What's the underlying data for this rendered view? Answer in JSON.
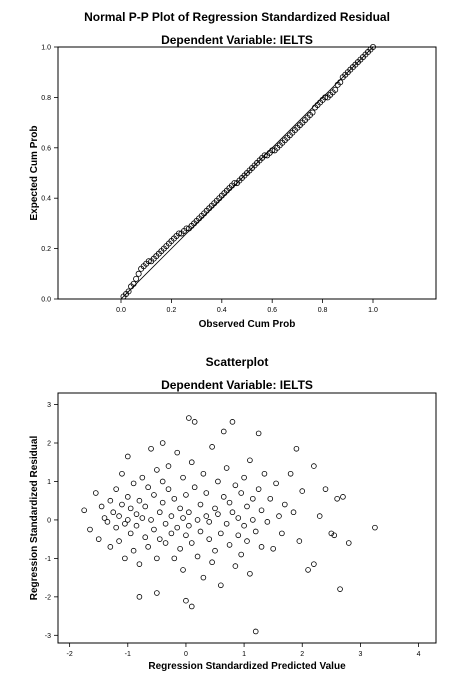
{
  "chart_data": [
    {
      "type": "scatter",
      "title": "Normal P-P Plot of Regression Standardized Residual",
      "subtitle": "Dependent Variable: IELTS",
      "xlabel": "Observed Cum Prob",
      "ylabel": "Expected Cum Prob",
      "xlim": [
        -0.25,
        1.25
      ],
      "ylim": [
        0.0,
        1.0
      ],
      "x_ticks": [
        "0.0",
        "0.2",
        "0.4",
        "0.6",
        "0.8",
        "1.0"
      ],
      "y_ticks": [
        "0.0",
        "0.2",
        "0.4",
        "0.6",
        "0.8",
        "1.0"
      ],
      "grid": false,
      "reference_line": [
        [
          0.0,
          0.0
        ],
        [
          1.0,
          1.0
        ]
      ],
      "points": [
        [
          0.01,
          0.01
        ],
        [
          0.02,
          0.02
        ],
        [
          0.03,
          0.03
        ],
        [
          0.04,
          0.05
        ],
        [
          0.05,
          0.06
        ],
        [
          0.06,
          0.08
        ],
        [
          0.07,
          0.1
        ],
        [
          0.08,
          0.12
        ],
        [
          0.09,
          0.13
        ],
        [
          0.1,
          0.14
        ],
        [
          0.11,
          0.15
        ],
        [
          0.12,
          0.15
        ],
        [
          0.13,
          0.16
        ],
        [
          0.14,
          0.17
        ],
        [
          0.15,
          0.18
        ],
        [
          0.16,
          0.19
        ],
        [
          0.17,
          0.2
        ],
        [
          0.18,
          0.21
        ],
        [
          0.19,
          0.22
        ],
        [
          0.2,
          0.23
        ],
        [
          0.21,
          0.24
        ],
        [
          0.22,
          0.25
        ],
        [
          0.23,
          0.26
        ],
        [
          0.24,
          0.26
        ],
        [
          0.25,
          0.27
        ],
        [
          0.26,
          0.28
        ],
        [
          0.27,
          0.28
        ],
        [
          0.28,
          0.29
        ],
        [
          0.29,
          0.3
        ],
        [
          0.3,
          0.31
        ],
        [
          0.31,
          0.32
        ],
        [
          0.32,
          0.33
        ],
        [
          0.33,
          0.34
        ],
        [
          0.34,
          0.35
        ],
        [
          0.35,
          0.36
        ],
        [
          0.36,
          0.37
        ],
        [
          0.37,
          0.38
        ],
        [
          0.38,
          0.39
        ],
        [
          0.39,
          0.4
        ],
        [
          0.4,
          0.41
        ],
        [
          0.41,
          0.42
        ],
        [
          0.42,
          0.43
        ],
        [
          0.43,
          0.44
        ],
        [
          0.44,
          0.45
        ],
        [
          0.45,
          0.46
        ],
        [
          0.46,
          0.46
        ],
        [
          0.47,
          0.47
        ],
        [
          0.48,
          0.48
        ],
        [
          0.49,
          0.49
        ],
        [
          0.5,
          0.5
        ],
        [
          0.51,
          0.51
        ],
        [
          0.52,
          0.52
        ],
        [
          0.53,
          0.53
        ],
        [
          0.54,
          0.54
        ],
        [
          0.55,
          0.55
        ],
        [
          0.56,
          0.56
        ],
        [
          0.57,
          0.57
        ],
        [
          0.58,
          0.57
        ],
        [
          0.59,
          0.58
        ],
        [
          0.6,
          0.59
        ],
        [
          0.61,
          0.59
        ],
        [
          0.62,
          0.6
        ],
        [
          0.63,
          0.61
        ],
        [
          0.64,
          0.62
        ],
        [
          0.65,
          0.63
        ],
        [
          0.66,
          0.64
        ],
        [
          0.67,
          0.65
        ],
        [
          0.68,
          0.66
        ],
        [
          0.69,
          0.67
        ],
        [
          0.7,
          0.68
        ],
        [
          0.71,
          0.69
        ],
        [
          0.72,
          0.7
        ],
        [
          0.73,
          0.71
        ],
        [
          0.74,
          0.72
        ],
        [
          0.75,
          0.73
        ],
        [
          0.76,
          0.74
        ],
        [
          0.77,
          0.76
        ],
        [
          0.78,
          0.77
        ],
        [
          0.79,
          0.78
        ],
        [
          0.8,
          0.79
        ],
        [
          0.81,
          0.8
        ],
        [
          0.82,
          0.8
        ],
        [
          0.83,
          0.81
        ],
        [
          0.84,
          0.82
        ],
        [
          0.85,
          0.83
        ],
        [
          0.86,
          0.85
        ],
        [
          0.87,
          0.86
        ],
        [
          0.88,
          0.88
        ],
        [
          0.89,
          0.89
        ],
        [
          0.9,
          0.9
        ],
        [
          0.91,
          0.91
        ],
        [
          0.92,
          0.92
        ],
        [
          0.93,
          0.93
        ],
        [
          0.94,
          0.94
        ],
        [
          0.95,
          0.95
        ],
        [
          0.96,
          0.96
        ],
        [
          0.97,
          0.97
        ],
        [
          0.98,
          0.98
        ],
        [
          0.99,
          0.99
        ],
        [
          1.0,
          1.0
        ]
      ]
    },
    {
      "type": "scatter",
      "title": "Scatterplot",
      "subtitle": "Dependent Variable: IELTS",
      "xlabel": "Regression Standardized Predicted Value",
      "ylabel": "Regression Standardized Residual",
      "xlim": [
        -2.2,
        4.3
      ],
      "ylim": [
        -3.2,
        3.3
      ],
      "x_ticks": [
        "-2",
        "-1",
        "0",
        "1",
        "2",
        "3",
        "4"
      ],
      "y_ticks": [
        "-3",
        "-2",
        "-1",
        "0",
        "1",
        "2",
        "3"
      ],
      "grid": false,
      "points": [
        [
          -1.75,
          0.25
        ],
        [
          -1.55,
          0.7
        ],
        [
          -1.65,
          -0.25
        ],
        [
          -1.5,
          -0.5
        ],
        [
          -1.45,
          0.35
        ],
        [
          -1.4,
          0.05
        ],
        [
          -1.35,
          -0.05
        ],
        [
          -1.3,
          0.5
        ],
        [
          -1.3,
          -0.7
        ],
        [
          -1.25,
          0.2
        ],
        [
          -1.2,
          -0.2
        ],
        [
          -1.2,
          0.8
        ],
        [
          -1.15,
          0.1
        ],
        [
          -1.15,
          -0.55
        ],
        [
          -1.1,
          0.4
        ],
        [
          -1.1,
          1.2
        ],
        [
          -1.05,
          -0.1
        ],
        [
          -1.05,
          -1.0
        ],
        [
          -1.0,
          0.6
        ],
        [
          -1.0,
          0.0
        ],
        [
          -1.0,
          1.65
        ],
        [
          -0.95,
          0.3
        ],
        [
          -0.95,
          -0.35
        ],
        [
          -0.9,
          -0.8
        ],
        [
          -0.9,
          0.95
        ],
        [
          -0.85,
          0.15
        ],
        [
          -0.85,
          -0.15
        ],
        [
          -0.8,
          0.5
        ],
        [
          -0.8,
          -1.15
        ],
        [
          -0.8,
          -2.0
        ],
        [
          -0.75,
          0.05
        ],
        [
          -0.75,
          1.1
        ],
        [
          -0.7,
          -0.45
        ],
        [
          -0.7,
          0.35
        ],
        [
          -0.65,
          0.85
        ],
        [
          -0.65,
          -0.7
        ],
        [
          -0.6,
          1.85
        ],
        [
          -0.6,
          0.0
        ],
        [
          -0.55,
          -0.25
        ],
        [
          -0.55,
          0.65
        ],
        [
          -0.5,
          1.3
        ],
        [
          -0.5,
          -1.0
        ],
        [
          -0.5,
          -1.9
        ],
        [
          -0.45,
          0.2
        ],
        [
          -0.45,
          -0.5
        ],
        [
          -0.4,
          1.0
        ],
        [
          -0.4,
          0.45
        ],
        [
          -0.4,
          2.0
        ],
        [
          -0.35,
          -0.1
        ],
        [
          -0.35,
          -0.6
        ],
        [
          -0.3,
          0.8
        ],
        [
          -0.3,
          1.4
        ],
        [
          -0.25,
          0.1
        ],
        [
          -0.25,
          -0.35
        ],
        [
          -0.2,
          -1.0
        ],
        [
          -0.2,
          0.55
        ],
        [
          -0.15,
          1.75
        ],
        [
          -0.15,
          -0.2
        ],
        [
          -0.1,
          0.3
        ],
        [
          -0.1,
          -0.75
        ],
        [
          -0.05,
          1.1
        ],
        [
          -0.05,
          0.05
        ],
        [
          -0.05,
          -1.3
        ],
        [
          0.0,
          0.65
        ],
        [
          0.0,
          -0.4
        ],
        [
          0.0,
          -2.1
        ],
        [
          0.05,
          2.65
        ],
        [
          0.05,
          0.2
        ],
        [
          0.05,
          -0.15
        ],
        [
          0.1,
          1.5
        ],
        [
          0.1,
          -0.6
        ],
        [
          0.1,
          -2.25
        ],
        [
          0.15,
          2.55
        ],
        [
          0.15,
          0.85
        ],
        [
          0.2,
          0.0
        ],
        [
          0.2,
          -0.95
        ],
        [
          0.25,
          0.4
        ],
        [
          0.25,
          -0.3
        ],
        [
          0.3,
          1.2
        ],
        [
          0.3,
          -1.5
        ],
        [
          0.35,
          0.1
        ],
        [
          0.35,
          0.7
        ],
        [
          0.4,
          -0.5
        ],
        [
          0.4,
          -0.05
        ],
        [
          0.45,
          1.9
        ],
        [
          0.45,
          -1.1
        ],
        [
          0.5,
          0.3
        ],
        [
          0.5,
          -0.8
        ],
        [
          0.55,
          1.0
        ],
        [
          0.55,
          0.15
        ],
        [
          0.6,
          -0.35
        ],
        [
          0.6,
          -1.7
        ],
        [
          0.65,
          0.6
        ],
        [
          0.65,
          2.3
        ],
        [
          0.7,
          -0.1
        ],
        [
          0.7,
          1.35
        ],
        [
          0.75,
          0.45
        ],
        [
          0.75,
          -0.65
        ],
        [
          0.8,
          2.55
        ],
        [
          0.8,
          0.2
        ],
        [
          0.85,
          -1.2
        ],
        [
          0.85,
          0.9
        ],
        [
          0.9,
          -0.4
        ],
        [
          0.9,
          0.05
        ],
        [
          0.95,
          0.7
        ],
        [
          0.95,
          -0.9
        ],
        [
          1.0,
          1.1
        ],
        [
          1.0,
          -0.15
        ],
        [
          1.05,
          0.35
        ],
        [
          1.05,
          -0.55
        ],
        [
          1.1,
          1.55
        ],
        [
          1.1,
          -1.4
        ],
        [
          1.15,
          0.0
        ],
        [
          1.15,
          0.55
        ],
        [
          1.2,
          -2.9
        ],
        [
          1.2,
          -0.3
        ],
        [
          1.25,
          2.25
        ],
        [
          1.25,
          0.8
        ],
        [
          1.3,
          -0.7
        ],
        [
          1.3,
          0.25
        ],
        [
          1.35,
          1.2
        ],
        [
          1.4,
          -0.05
        ],
        [
          1.45,
          0.55
        ],
        [
          1.5,
          -0.75
        ],
        [
          1.55,
          0.95
        ],
        [
          1.6,
          0.1
        ],
        [
          1.65,
          -0.35
        ],
        [
          1.7,
          0.4
        ],
        [
          1.8,
          1.2
        ],
        [
          1.85,
          0.2
        ],
        [
          1.9,
          1.85
        ],
        [
          1.95,
          -0.55
        ],
        [
          2.0,
          0.75
        ],
        [
          2.1,
          -1.3
        ],
        [
          2.2,
          1.4
        ],
        [
          2.3,
          0.1
        ],
        [
          2.4,
          0.8
        ],
        [
          2.5,
          -0.35
        ],
        [
          2.6,
          0.55
        ],
        [
          2.65,
          -1.8
        ],
        [
          2.7,
          0.6
        ],
        [
          2.8,
          -0.6
        ],
        [
          3.25,
          -0.2
        ],
        [
          2.55,
          -0.4
        ],
        [
          2.2,
          -1.15
        ]
      ]
    }
  ]
}
